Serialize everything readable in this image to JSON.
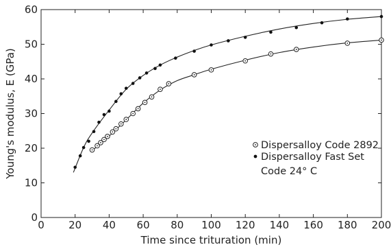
{
  "chart_data": {
    "type": "line",
    "xlabel": "Time since trituration (min)",
    "ylabel": "Young's modulus, E (GPa)",
    "xlim": [
      0,
      200
    ],
    "ylim": [
      0,
      60
    ],
    "xticks": [
      0,
      20,
      40,
      60,
      80,
      100,
      120,
      140,
      160,
      180,
      200
    ],
    "yticks": [
      0,
      10,
      20,
      30,
      40,
      50,
      60
    ],
    "grid": false,
    "legend_position": "right-middle",
    "series": [
      {
        "name": "Dispersalloy Code 2892",
        "marker": "circle-dot",
        "color": "#222222",
        "x": [
          30,
          33,
          35,
          37,
          39,
          42,
          44,
          47,
          50,
          54,
          57,
          61,
          65,
          70,
          75,
          90,
          100,
          120,
          135,
          150,
          180,
          200
        ],
        "y": [
          19.5,
          20.7,
          21.6,
          22.5,
          23.4,
          24.7,
          25.6,
          27.0,
          28.3,
          30.0,
          31.4,
          33.2,
          34.8,
          37.0,
          38.6,
          41.2,
          42.6,
          45.2,
          47.2,
          48.5,
          50.3,
          51.2
        ]
      },
      {
        "name": "Dispersalloy Fast Set",
        "name_line2": "Code 24° C",
        "marker": "filled-dot",
        "color": "#111111",
        "x": [
          20,
          23,
          25,
          28,
          31,
          34,
          37,
          40,
          44,
          47,
          50,
          54,
          58,
          62,
          67,
          70,
          79,
          90,
          100,
          110,
          120,
          135,
          150,
          165,
          180,
          200
        ],
        "y": [
          14.5,
          17.8,
          20.2,
          22.0,
          24.8,
          27.5,
          29.7,
          30.7,
          33.5,
          35.7,
          37.3,
          38.7,
          40.3,
          41.7,
          43.0,
          44.0,
          46.0,
          48.0,
          49.8,
          51.0,
          52.0,
          53.5,
          54.8,
          56.2,
          57.3,
          58.0
        ]
      }
    ],
    "curves": [
      {
        "x": [
          30,
          40,
          50,
          60,
          70,
          80,
          90,
          100,
          120,
          140,
          160,
          180,
          200
        ],
        "y": [
          19.3,
          23.5,
          28.2,
          33.0,
          36.8,
          39.5,
          41.2,
          42.8,
          45.4,
          47.6,
          49.2,
          50.4,
          51.2
        ]
      },
      {
        "x": [
          19,
          25,
          30,
          40,
          50,
          60,
          70,
          80,
          90,
          100,
          120,
          140,
          160,
          180,
          200
        ],
        "y": [
          13.0,
          20.2,
          24.4,
          31.0,
          37.0,
          41.0,
          44.0,
          46.3,
          48.2,
          49.8,
          52.3,
          54.4,
          56.0,
          57.2,
          58.0
        ]
      }
    ]
  }
}
